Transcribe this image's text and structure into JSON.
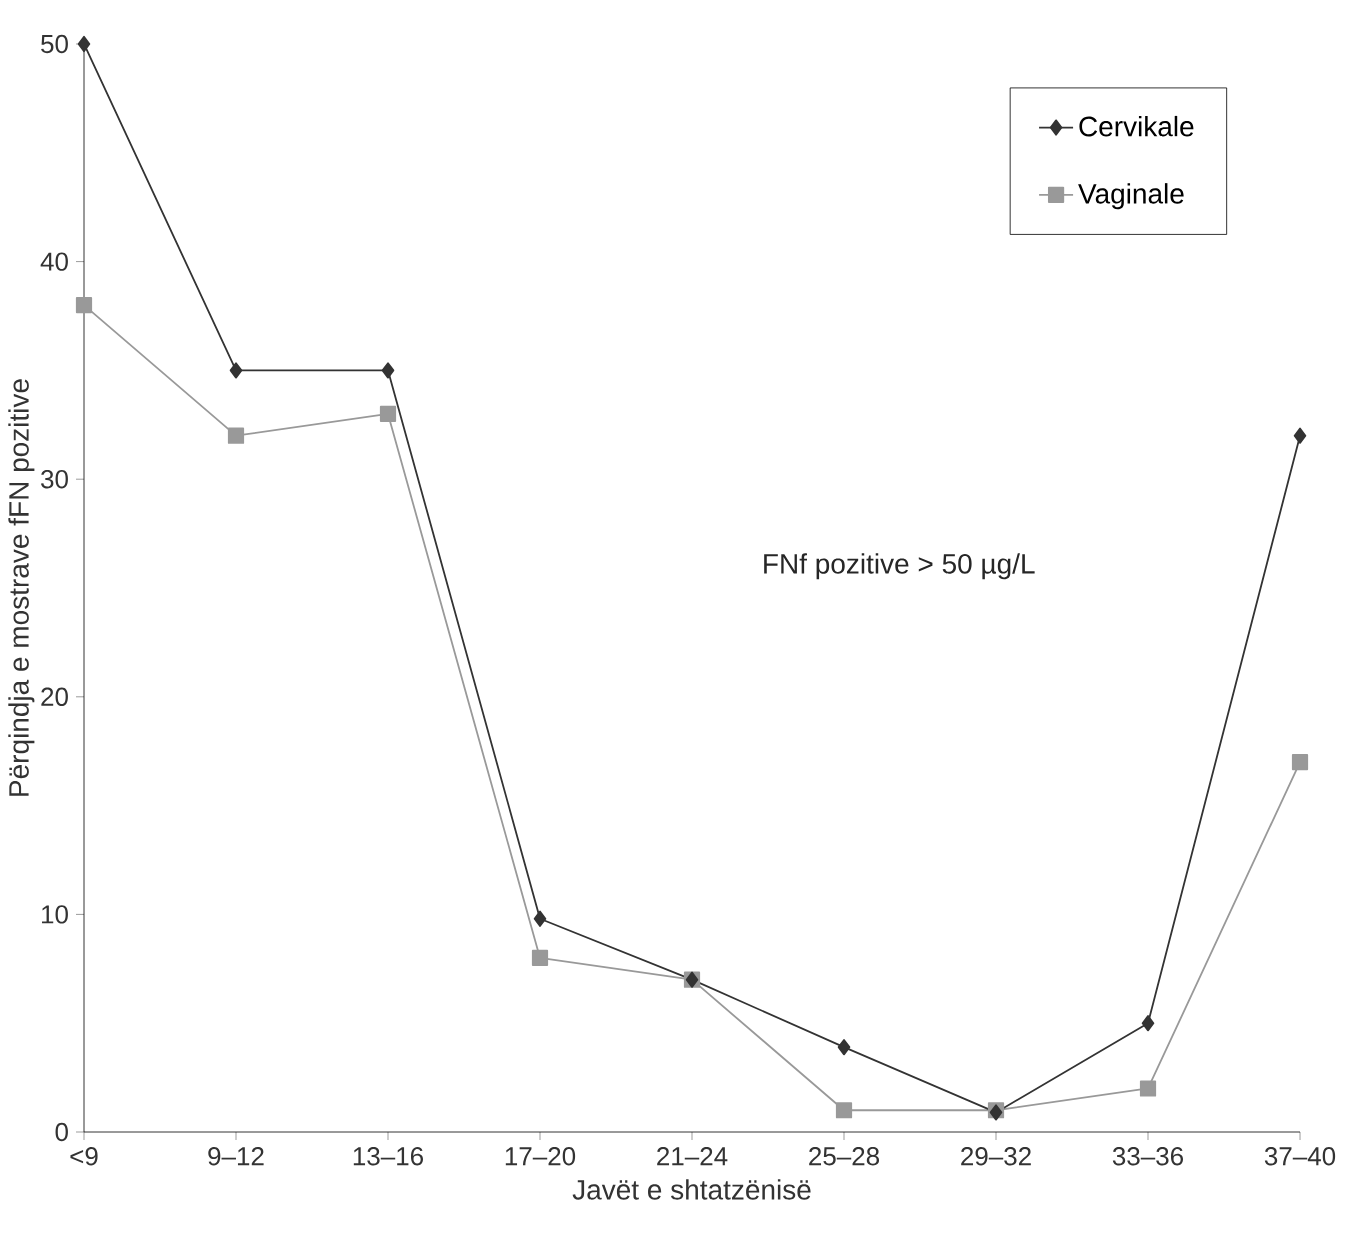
{
  "chart_data": {
    "type": "line",
    "xlabel": "Javët e shtatzënisë",
    "ylabel": "Përqindja e mostrave fFN pozitive",
    "categories": [
      "<9",
      "9–12",
      "13–16",
      "17–20",
      "21–24",
      "25–28",
      "29–32",
      "33–36",
      "37–40"
    ],
    "series": [
      {
        "name": "Cervikale",
        "color": "#333333",
        "marker": "diamond",
        "values": [
          50,
          35,
          35,
          9.8,
          7,
          3.9,
          0.9,
          5,
          32
        ]
      },
      {
        "name": "Vaginale",
        "color": "#999999",
        "marker": "square",
        "values": [
          38,
          32,
          33,
          8,
          7,
          1,
          1,
          2,
          17
        ]
      }
    ],
    "ylim": [
      0,
      50
    ],
    "yticks": [
      0,
      10,
      20,
      30,
      40,
      50
    ],
    "legend": "top right",
    "grid": false,
    "line_style": "solid",
    "annotations": [
      "FNf pozitive > 50 µg/L"
    ]
  }
}
